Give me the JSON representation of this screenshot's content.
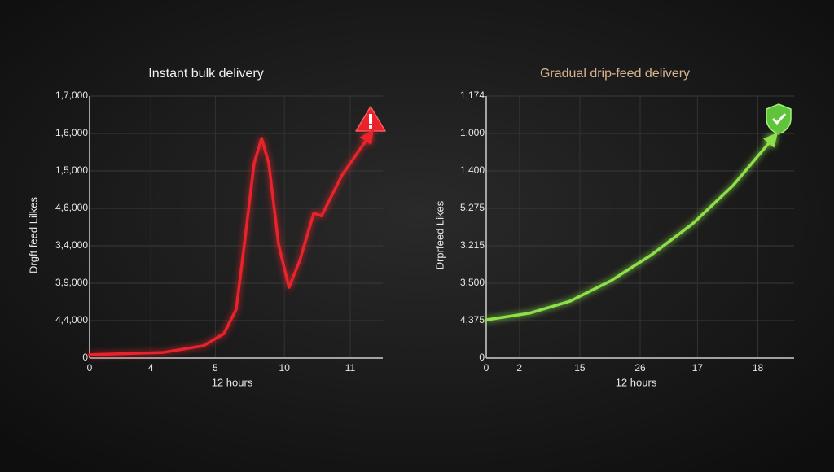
{
  "chart_data": [
    {
      "type": "line",
      "title": "Instant bulk delivery",
      "title_color": "#f2f2f2",
      "x_label": "12 hours",
      "y_label": "Drgft feed Lilkes",
      "xlim": [
        0,
        4.5
      ],
      "xticks": [
        {
          "value": 0,
          "label": "0"
        },
        {
          "value": 0.94,
          "label": "4"
        },
        {
          "value": 1.93,
          "label": "5"
        },
        {
          "value": 2.99,
          "label": "10"
        },
        {
          "value": 4.0,
          "label": "11"
        }
      ],
      "ylim": [
        0,
        7
      ],
      "yticks": [
        {
          "value": 0,
          "label": "0"
        },
        {
          "value": 1,
          "label": "4,4,000"
        },
        {
          "value": 2,
          "label": "3,9,000"
        },
        {
          "value": 3,
          "label": "3,4,000"
        },
        {
          "value": 4,
          "label": "4,6,000"
        },
        {
          "value": 5,
          "label": "1,5,000"
        },
        {
          "value": 6,
          "label": "1,6,000"
        },
        {
          "value": 7,
          "label": "1,7,000"
        }
      ],
      "grid": true,
      "series": [
        {
          "color": "#e8232b",
          "x": [
            0,
            1.125,
            1.75,
            2.06,
            2.25,
            2.375,
            2.525,
            2.64,
            2.75,
            2.9,
            3.06,
            3.225,
            3.44,
            3.56,
            3.875,
            4.31
          ],
          "values": [
            0.09,
            0.15,
            0.33,
            0.65,
            1.3,
            3.04,
            5.2,
            5.87,
            5.2,
            3.04,
            1.89,
            2.6,
            3.87,
            3.8,
            4.89,
            5.98
          ]
        }
      ]
    },
    {
      "type": "line",
      "title": "Gradual drip-feed delivery",
      "title_color": "#d9b48f",
      "x_label": "12 hours",
      "y_label": "Drprfeed Likes",
      "xlim": [
        0,
        5.1
      ],
      "xticks": [
        {
          "value": 0,
          "label": "0"
        },
        {
          "value": 0.55,
          "label": "2"
        },
        {
          "value": 1.55,
          "label": "15"
        },
        {
          "value": 2.55,
          "label": "26"
        },
        {
          "value": 3.5,
          "label": "17"
        },
        {
          "value": 4.5,
          "label": "18"
        }
      ],
      "ylim": [
        0,
        7
      ],
      "yticks": [
        {
          "value": 0,
          "label": "0"
        },
        {
          "value": 1,
          "label": "4,375"
        },
        {
          "value": 2,
          "label": "3,500"
        },
        {
          "value": 3,
          "label": "3,215"
        },
        {
          "value": 4,
          "label": "5,275"
        },
        {
          "value": 5,
          "label": "1,400"
        },
        {
          "value": 6,
          "label": "1,000"
        },
        {
          "value": 7,
          "label": "1,174"
        }
      ],
      "grid": true,
      "series": [
        {
          "color": "#8ee04a",
          "x": [
            0,
            0.72,
            1.39,
            2.07,
            2.74,
            3.42,
            4.09,
            4.77
          ],
          "values": [
            1.02,
            1.2,
            1.52,
            2.07,
            2.76,
            3.59,
            4.61,
            5.91
          ]
        }
      ]
    }
  ]
}
